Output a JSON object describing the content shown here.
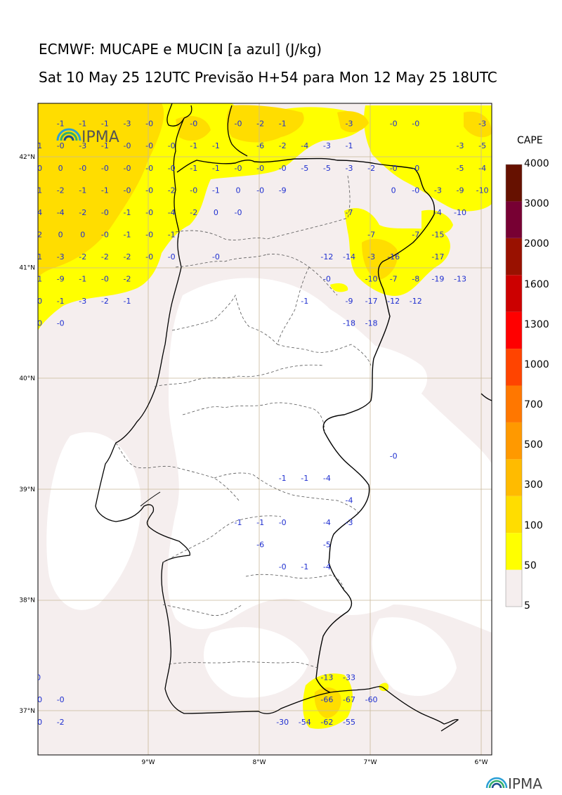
{
  "title_line1": "ECMWF: MUCAPE e MUCIN [a azul] (J/kg)",
  "title_line2": "Sat 10 May 25 12UTC Previsão H+54 para Mon 12 May 25 18UTC",
  "logo_text": "IPMA",
  "colorbar": {
    "title": "CAPE",
    "levels": [
      "5",
      "50",
      "100",
      "300",
      "500",
      "700",
      "1000",
      "1300",
      "1600",
      "2000",
      "3000",
      "4000"
    ],
    "colors": [
      "#f5eeee",
      "#ffff00",
      "#ffdd00",
      "#ffbb00",
      "#ff9900",
      "#ff7700",
      "#ff4400",
      "#ff0000",
      "#cc0000",
      "#991100",
      "#770033",
      "#661100"
    ]
  },
  "axes": {
    "lon_labels": [
      "9°W",
      "8°W",
      "7°W",
      "6°W"
    ],
    "lat_labels": [
      "42°N",
      "41°N",
      "40°N",
      "39°N",
      "38°N",
      "37°N"
    ]
  },
  "cin_values": [
    {
      "t": "-1",
      "lon": -9.79,
      "lat": 42.3
    },
    {
      "t": "-1",
      "lon": -9.59,
      "lat": 42.3
    },
    {
      "t": "-1",
      "lon": -9.39,
      "lat": 42.3
    },
    {
      "t": "-3",
      "lon": -9.19,
      "lat": 42.3
    },
    {
      "t": "-0",
      "lon": -8.99,
      "lat": 42.3
    },
    {
      "t": "-0",
      "lon": -8.59,
      "lat": 42.3
    },
    {
      "t": "-0",
      "lon": -8.19,
      "lat": 42.3
    },
    {
      "t": "-2",
      "lon": -7.99,
      "lat": 42.3
    },
    {
      "t": "-1",
      "lon": -7.79,
      "lat": 42.3
    },
    {
      "t": "-3",
      "lon": -7.19,
      "lat": 42.3
    },
    {
      "t": "-0",
      "lon": -6.79,
      "lat": 42.3
    },
    {
      "t": "-0",
      "lon": -6.59,
      "lat": 42.3
    },
    {
      "t": "-3",
      "lon": -5.99,
      "lat": 42.3
    },
    {
      "t": "-1",
      "lon": -9.99,
      "lat": 42.1
    },
    {
      "t": "-0",
      "lon": -9.79,
      "lat": 42.1
    },
    {
      "t": "-3",
      "lon": -9.59,
      "lat": 42.1
    },
    {
      "t": "-1",
      "lon": -9.39,
      "lat": 42.1
    },
    {
      "t": "-0",
      "lon": -9.19,
      "lat": 42.1
    },
    {
      "t": "-0",
      "lon": -8.99,
      "lat": 42.1
    },
    {
      "t": "-0",
      "lon": -8.79,
      "lat": 42.1
    },
    {
      "t": "-1",
      "lon": -8.59,
      "lat": 42.1
    },
    {
      "t": "-1",
      "lon": -8.39,
      "lat": 42.1
    },
    {
      "t": "-6",
      "lon": -7.99,
      "lat": 42.1
    },
    {
      "t": "-2",
      "lon": -7.79,
      "lat": 42.1
    },
    {
      "t": "-4",
      "lon": -7.59,
      "lat": 42.1
    },
    {
      "t": "-3",
      "lon": -7.39,
      "lat": 42.1
    },
    {
      "t": "-1",
      "lon": -7.19,
      "lat": 42.1
    },
    {
      "t": "-3",
      "lon": -6.19,
      "lat": 42.1
    },
    {
      "t": "-5",
      "lon": -5.99,
      "lat": 42.1
    },
    {
      "t": "-0",
      "lon": -9.99,
      "lat": 41.9
    },
    {
      "t": "0",
      "lon": -9.79,
      "lat": 41.9
    },
    {
      "t": "-0",
      "lon": -9.59,
      "lat": 41.9
    },
    {
      "t": "-0",
      "lon": -9.39,
      "lat": 41.9
    },
    {
      "t": "-0",
      "lon": -9.19,
      "lat": 41.9
    },
    {
      "t": "-0",
      "lon": -8.99,
      "lat": 41.9
    },
    {
      "t": "-0",
      "lon": -8.79,
      "lat": 41.9
    },
    {
      "t": "-1",
      "lon": -8.59,
      "lat": 41.9
    },
    {
      "t": "-1",
      "lon": -8.39,
      "lat": 41.9
    },
    {
      "t": "-0",
      "lon": -8.19,
      "lat": 41.9
    },
    {
      "t": "-0",
      "lon": -7.99,
      "lat": 41.9
    },
    {
      "t": "-0",
      "lon": -7.79,
      "lat": 41.9
    },
    {
      "t": "-5",
      "lon": -7.59,
      "lat": 41.9
    },
    {
      "t": "-5",
      "lon": -7.39,
      "lat": 41.9
    },
    {
      "t": "-3",
      "lon": -7.19,
      "lat": 41.9
    },
    {
      "t": "-2",
      "lon": -6.99,
      "lat": 41.9
    },
    {
      "t": "-0",
      "lon": -6.79,
      "lat": 41.9
    },
    {
      "t": "-0",
      "lon": -6.59,
      "lat": 41.9
    },
    {
      "t": "-5",
      "lon": -6.19,
      "lat": 41.9
    },
    {
      "t": "-4",
      "lon": -5.99,
      "lat": 41.9
    },
    {
      "t": "-1",
      "lon": -9.99,
      "lat": 41.7
    },
    {
      "t": "-2",
      "lon": -9.79,
      "lat": 41.7
    },
    {
      "t": "-1",
      "lon": -9.59,
      "lat": 41.7
    },
    {
      "t": "-1",
      "lon": -9.39,
      "lat": 41.7
    },
    {
      "t": "-0",
      "lon": -9.19,
      "lat": 41.7
    },
    {
      "t": "-0",
      "lon": -8.99,
      "lat": 41.7
    },
    {
      "t": "-2",
      "lon": -8.79,
      "lat": 41.7
    },
    {
      "t": "-0",
      "lon": -8.59,
      "lat": 41.7
    },
    {
      "t": "-1",
      "lon": -8.39,
      "lat": 41.7
    },
    {
      "t": "0",
      "lon": -8.19,
      "lat": 41.7
    },
    {
      "t": "-0",
      "lon": -7.99,
      "lat": 41.7
    },
    {
      "t": "-9",
      "lon": -7.79,
      "lat": 41.7
    },
    {
      "t": "0",
      "lon": -6.79,
      "lat": 41.7
    },
    {
      "t": "-0",
      "lon": -6.59,
      "lat": 41.7
    },
    {
      "t": "-3",
      "lon": -6.39,
      "lat": 41.7
    },
    {
      "t": "-9",
      "lon": -6.19,
      "lat": 41.7
    },
    {
      "t": "-10",
      "lon": -5.99,
      "lat": 41.7
    },
    {
      "t": "-4",
      "lon": -9.99,
      "lat": 41.5
    },
    {
      "t": "-4",
      "lon": -9.79,
      "lat": 41.5
    },
    {
      "t": "-2",
      "lon": -9.59,
      "lat": 41.5
    },
    {
      "t": "-0",
      "lon": -9.39,
      "lat": 41.5
    },
    {
      "t": "-1",
      "lon": -9.19,
      "lat": 41.5
    },
    {
      "t": "-0",
      "lon": -8.99,
      "lat": 41.5
    },
    {
      "t": "-4",
      "lon": -8.79,
      "lat": 41.5
    },
    {
      "t": "-2",
      "lon": -8.59,
      "lat": 41.5
    },
    {
      "t": "0",
      "lon": -8.39,
      "lat": 41.5
    },
    {
      "t": "-0",
      "lon": -8.19,
      "lat": 41.5
    },
    {
      "t": "-7",
      "lon": -7.19,
      "lat": 41.5
    },
    {
      "t": "-4",
      "lon": -6.39,
      "lat": 41.5
    },
    {
      "t": "-10",
      "lon": -6.19,
      "lat": 41.5
    },
    {
      "t": "-2",
      "lon": -9.99,
      "lat": 41.3
    },
    {
      "t": "0",
      "lon": -9.79,
      "lat": 41.3
    },
    {
      "t": "0",
      "lon": -9.59,
      "lat": 41.3
    },
    {
      "t": "-0",
      "lon": -9.39,
      "lat": 41.3
    },
    {
      "t": "-1",
      "lon": -9.19,
      "lat": 41.3
    },
    {
      "t": "-0",
      "lon": -8.99,
      "lat": 41.3
    },
    {
      "t": "-1",
      "lon": -8.79,
      "lat": 41.3
    },
    {
      "t": "-7",
      "lon": -6.99,
      "lat": 41.3
    },
    {
      "t": "-7",
      "lon": -6.59,
      "lat": 41.3
    },
    {
      "t": "-15",
      "lon": -6.39,
      "lat": 41.3
    },
    {
      "t": "-1",
      "lon": -9.99,
      "lat": 41.1
    },
    {
      "t": "-3",
      "lon": -9.79,
      "lat": 41.1
    },
    {
      "t": "-2",
      "lon": -9.59,
      "lat": 41.1
    },
    {
      "t": "-2",
      "lon": -9.39,
      "lat": 41.1
    },
    {
      "t": "-2",
      "lon": -9.19,
      "lat": 41.1
    },
    {
      "t": "-0",
      "lon": -8.99,
      "lat": 41.1
    },
    {
      "t": "-0",
      "lon": -8.79,
      "lat": 41.1
    },
    {
      "t": "-0",
      "lon": -8.39,
      "lat": 41.1
    },
    {
      "t": "-12",
      "lon": -7.39,
      "lat": 41.1
    },
    {
      "t": "-14",
      "lon": -7.19,
      "lat": 41.1
    },
    {
      "t": "-3",
      "lon": -6.99,
      "lat": 41.1
    },
    {
      "t": "-16",
      "lon": -6.79,
      "lat": 41.1
    },
    {
      "t": "-17",
      "lon": -6.39,
      "lat": 41.1
    },
    {
      "t": "-1",
      "lon": -9.99,
      "lat": 40.9
    },
    {
      "t": "-9",
      "lon": -9.79,
      "lat": 40.9
    },
    {
      "t": "-1",
      "lon": -9.59,
      "lat": 40.9
    },
    {
      "t": "-0",
      "lon": -9.39,
      "lat": 40.9
    },
    {
      "t": "-2",
      "lon": -9.19,
      "lat": 40.9
    },
    {
      "t": "-0",
      "lon": -7.39,
      "lat": 40.9
    },
    {
      "t": "-10",
      "lon": -6.99,
      "lat": 40.9
    },
    {
      "t": "-7",
      "lon": -6.79,
      "lat": 40.9
    },
    {
      "t": "-8",
      "lon": -6.59,
      "lat": 40.9
    },
    {
      "t": "-19",
      "lon": -6.39,
      "lat": 40.9
    },
    {
      "t": "-13",
      "lon": -6.19,
      "lat": 40.9
    },
    {
      "t": "-0",
      "lon": -9.99,
      "lat": 40.7
    },
    {
      "t": "-1",
      "lon": -9.79,
      "lat": 40.7
    },
    {
      "t": "-3",
      "lon": -9.59,
      "lat": 40.7
    },
    {
      "t": "-2",
      "lon": -9.39,
      "lat": 40.7
    },
    {
      "t": "-1",
      "lon": -9.19,
      "lat": 40.7
    },
    {
      "t": "-1",
      "lon": -7.59,
      "lat": 40.7
    },
    {
      "t": "-9",
      "lon": -7.19,
      "lat": 40.7
    },
    {
      "t": "-17",
      "lon": -6.99,
      "lat": 40.7
    },
    {
      "t": "-12",
      "lon": -6.79,
      "lat": 40.7
    },
    {
      "t": "-12",
      "lon": -6.59,
      "lat": 40.7
    },
    {
      "t": "-0",
      "lon": -9.99,
      "lat": 40.5
    },
    {
      "t": "-0",
      "lon": -9.79,
      "lat": 40.5
    },
    {
      "t": "-18",
      "lon": -7.19,
      "lat": 40.5
    },
    {
      "t": "-18",
      "lon": -6.99,
      "lat": 40.5
    },
    {
      "t": "-0",
      "lon": -6.79,
      "lat": 39.3
    },
    {
      "t": "-1",
      "lon": -7.79,
      "lat": 39.1
    },
    {
      "t": "-1",
      "lon": -7.59,
      "lat": 39.1
    },
    {
      "t": "-4",
      "lon": -7.39,
      "lat": 39.1
    },
    {
      "t": "-4",
      "lon": -7.19,
      "lat": 38.9
    },
    {
      "t": "-1",
      "lon": -8.19,
      "lat": 38.7
    },
    {
      "t": "-1",
      "lon": -7.99,
      "lat": 38.7
    },
    {
      "t": "-0",
      "lon": -7.79,
      "lat": 38.7
    },
    {
      "t": "-4",
      "lon": -7.39,
      "lat": 38.7
    },
    {
      "t": "-3",
      "lon": -7.19,
      "lat": 38.7
    },
    {
      "t": "-6",
      "lon": -7.99,
      "lat": 38.5
    },
    {
      "t": "-5",
      "lon": -7.39,
      "lat": 38.5
    },
    {
      "t": "-0",
      "lon": -7.79,
      "lat": 38.3
    },
    {
      "t": "-1",
      "lon": -7.59,
      "lat": 38.3
    },
    {
      "t": "-4",
      "lon": -7.39,
      "lat": 38.3
    },
    {
      "t": "0",
      "lon": -9.99,
      "lat": 37.3
    },
    {
      "t": "-13",
      "lon": -7.39,
      "lat": 37.3
    },
    {
      "t": "-33",
      "lon": -7.19,
      "lat": 37.3
    },
    {
      "t": "-0",
      "lon": -9.99,
      "lat": 37.1
    },
    {
      "t": "-0",
      "lon": -9.79,
      "lat": 37.1
    },
    {
      "t": "-66",
      "lon": -7.39,
      "lat": 37.1
    },
    {
      "t": "-67",
      "lon": -7.19,
      "lat": 37.1
    },
    {
      "t": "-60",
      "lon": -6.99,
      "lat": 37.1
    },
    {
      "t": "-0",
      "lon": -9.99,
      "lat": 36.9
    },
    {
      "t": "-2",
      "lon": -9.79,
      "lat": 36.9
    },
    {
      "t": "-30",
      "lon": -7.79,
      "lat": 36.9
    },
    {
      "t": "-54",
      "lon": -7.59,
      "lat": 36.9
    },
    {
      "t": "-62",
      "lon": -7.39,
      "lat": 36.9
    },
    {
      "t": "-55",
      "lon": -7.19,
      "lat": 36.9
    }
  ]
}
